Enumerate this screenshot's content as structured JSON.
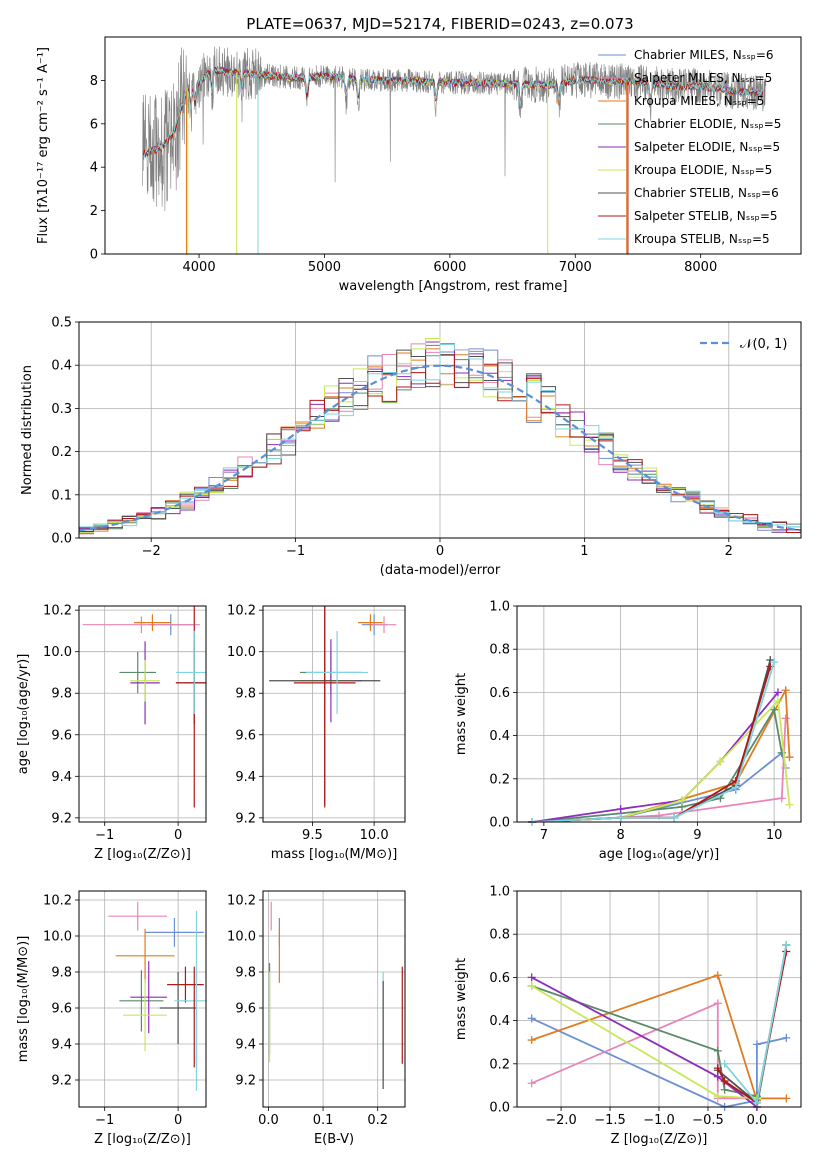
{
  "figure_title": "PLATE=0637, MJD=52174, FIBERID=0243, z=0.073",
  "colors": {
    "cm": "#6a8fd6",
    "sm": "#e885b8",
    "km": "#e07b20",
    "ce": "#5a8a6a",
    "se": "#8e2dbb",
    "ke": "#c8e85a",
    "cs": "#505050",
    "ss": "#b01818",
    "ks": "#7fd4e0",
    "obs": "#808080",
    "gauss": "#5b8fd6"
  },
  "chart_data": [
    {
      "type": "line",
      "title": "PLATE=0637, MJD=52174, FIBERID=0243, z=0.073",
      "xlabel": "wavelength [Angstrom, rest frame]",
      "ylabel": "Flux [fλ10⁻¹⁷ erg cm⁻² s⁻¹ A⁻¹]",
      "xlim": [
        3250,
        8800
      ],
      "ylim": [
        0,
        10
      ],
      "xticks": [
        "4000",
        "5000",
        "6000",
        "7000",
        "8000"
      ],
      "yticks": [
        "0",
        "2",
        "4",
        "6",
        "8"
      ],
      "legend_position": "upper-right",
      "legend": [
        "Chabrier MILES, Nₛₛₚ=6",
        "Salpeter MILES, Nₛₛₚ=5",
        "Kroupa MILES, Nₛₛₚ=5",
        "Chabrier ELODIE, Nₛₛₚ=5",
        "Salpeter ELODIE, Nₛₛₚ=5",
        "Kroupa ELODIE, Nₛₛₚ=5",
        "Chabrier STELIB, Nₛₛₚ=6",
        "Salpeter STELIB, Nₛₛₚ=5",
        "Kroupa STELIB, Nₛₛₚ=5"
      ],
      "continuum": {
        "x": [
          3550,
          3700,
          3800,
          3900,
          4000,
          4100,
          4200,
          4400,
          4600,
          4800,
          5000,
          5200,
          5400,
          5600,
          5800,
          6000,
          6200,
          6400,
          6600,
          6800,
          7000,
          7200,
          7400,
          7600,
          7800,
          8000,
          8200,
          8400,
          8500
        ],
        "y": [
          4.6,
          4.9,
          5.6,
          7.5,
          7.9,
          8.5,
          8.4,
          8.3,
          8.2,
          8.1,
          8.2,
          8.1,
          8.0,
          8.0,
          7.95,
          7.9,
          7.9,
          7.85,
          7.8,
          7.8,
          8.0,
          8.0,
          7.95,
          7.9,
          7.7,
          7.75,
          7.55,
          7.45,
          7.4
        ]
      }
    },
    {
      "type": "step",
      "xlabel": "(data-model)/error",
      "ylabel": "Normed distribution",
      "xlim": [
        -2.5,
        2.5
      ],
      "ylim": [
        0,
        0.5
      ],
      "xticks": [
        "−2",
        "−1",
        "0",
        "1",
        "2"
      ],
      "yticks": [
        "0.0",
        "0.1",
        "0.2",
        "0.3",
        "0.4",
        "0.5"
      ],
      "legend": [
        "𝒩(0, 1)"
      ],
      "legend_position": "upper-right",
      "gaussian": {
        "mean": 0,
        "sigma": 1
      }
    },
    {
      "type": "scatter",
      "xlabel": "Z [log₁₀(Z/Z⊙)]",
      "ylabel": "age  [log₁₀(age/yr)]",
      "xlim": [
        -1.35,
        0.38
      ],
      "ylim": [
        9.18,
        10.22
      ],
      "xticks": [
        "−1",
        "0"
      ],
      "yticks": [
        "9.2",
        "9.4",
        "9.6",
        "9.8",
        "10.0",
        "10.2"
      ],
      "points": [
        {
          "c": "cm",
          "x": -0.1,
          "xe": 0.3,
          "y": 10.13,
          "ye": 0.05
        },
        {
          "c": "sm",
          "x": -0.5,
          "xe": 0.8,
          "y": 10.13,
          "ye": 0.04
        },
        {
          "c": "km",
          "x": -0.35,
          "xe": 0.25,
          "y": 10.14,
          "ye": 0.04
        },
        {
          "c": "ce",
          "x": -0.55,
          "xe": 0.25,
          "y": 9.9,
          "ye": 0.1
        },
        {
          "c": "se",
          "x": -0.45,
          "xe": 0.2,
          "y": 9.85,
          "ye": 0.2
        },
        {
          "c": "ke",
          "x": -0.45,
          "xe": 0.2,
          "y": 9.86,
          "ye": 0.1
        },
        {
          "c": "cs",
          "x": 0.22,
          "xe": 0.25,
          "y": 9.85,
          "ye": 0.2
        },
        {
          "c": "ss",
          "x": 0.22,
          "xe": 0.25,
          "y": 9.85,
          "ye": 0.6
        },
        {
          "c": "ks",
          "x": 0.22,
          "xe": 0.25,
          "y": 9.9,
          "ye": 0.2
        }
      ]
    },
    {
      "type": "scatter",
      "xlabel": "mass [log₁₀(M/M⊙)]",
      "ylabel": "",
      "xlim": [
        9.1,
        10.25
      ],
      "ylim": [
        9.18,
        10.22
      ],
      "xticks": [
        "9.5",
        "10.0"
      ],
      "yticks": [
        "9.2",
        "9.4",
        "9.6",
        "9.8",
        "10.0",
        "10.2"
      ],
      "points": [
        {
          "c": "cm",
          "x": 10.0,
          "xe": 0.1,
          "y": 10.13,
          "ye": 0.05
        },
        {
          "c": "sm",
          "x": 10.08,
          "xe": 0.1,
          "y": 10.13,
          "ye": 0.04
        },
        {
          "c": "km",
          "x": 9.97,
          "xe": 0.1,
          "y": 10.14,
          "ye": 0.04
        },
        {
          "c": "ce",
          "x": 9.65,
          "xe": 0.25,
          "y": 9.9,
          "ye": 0.1
        },
        {
          "c": "se",
          "x": 9.65,
          "xe": 0.25,
          "y": 9.86,
          "ye": 0.2
        },
        {
          "c": "ke",
          "x": 9.6,
          "xe": 0.25,
          "y": 9.86,
          "ye": 0.1
        },
        {
          "c": "cs",
          "x": 9.6,
          "xe": 0.45,
          "y": 9.86,
          "ye": 0.6
        },
        {
          "c": "ss",
          "x": 9.6,
          "xe": 0.25,
          "y": 9.85,
          "ye": 0.6
        },
        {
          "c": "ks",
          "x": 9.7,
          "xe": 0.25,
          "y": 9.9,
          "ye": 0.2
        }
      ]
    },
    {
      "type": "line",
      "xlabel": "age  [log₁₀(age/yr)]",
      "ylabel": "mass weight",
      "xlim": [
        6.65,
        10.35
      ],
      "ylim": [
        0,
        1.0
      ],
      "xticks": [
        "7",
        "8",
        "9",
        "10"
      ],
      "yticks": [
        "0.0",
        "0.2",
        "0.4",
        "0.6",
        "0.8",
        "1.0"
      ],
      "series": [
        {
          "c": "cm",
          "x": [
            6.85,
            8.0,
            9.5,
            10.1,
            10.15
          ],
          "y": [
            0.0,
            0.02,
            0.15,
            0.32,
            0.25
          ]
        },
        {
          "c": "sm",
          "x": [
            6.85,
            8.5,
            10.1,
            10.15
          ],
          "y": [
            0.0,
            0.03,
            0.11,
            0.48
          ]
        },
        {
          "c": "km",
          "x": [
            6.85,
            8.0,
            9.5,
            10.15,
            10.2
          ],
          "y": [
            0.0,
            0.02,
            0.18,
            0.61,
            0.3
          ]
        },
        {
          "c": "ce",
          "x": [
            6.85,
            8.0,
            8.8,
            9.3,
            10.0,
            10.1
          ],
          "y": [
            0.0,
            0.04,
            0.07,
            0.11,
            0.52,
            0.32
          ]
        },
        {
          "c": "se",
          "x": [
            6.85,
            8.0,
            8.8,
            9.3,
            10.05
          ],
          "y": [
            0.0,
            0.06,
            0.1,
            0.28,
            0.6
          ]
        },
        {
          "c": "ke",
          "x": [
            6.85,
            8.0,
            8.8,
            9.3,
            10.05,
            10.2
          ],
          "y": [
            0.0,
            0.02,
            0.1,
            0.28,
            0.56,
            0.08
          ]
        },
        {
          "c": "cs",
          "x": [
            6.85,
            8.0,
            8.7,
            9.5,
            9.95
          ],
          "y": [
            0.0,
            0.02,
            0.02,
            0.17,
            0.75
          ]
        },
        {
          "c": "ss",
          "x": [
            6.85,
            8.0,
            8.7,
            9.5,
            9.95
          ],
          "y": [
            0.0,
            0.02,
            0.02,
            0.19,
            0.72
          ]
        },
        {
          "c": "ks",
          "x": [
            6.85,
            8.0,
            8.7,
            9.5,
            10.0
          ],
          "y": [
            0.0,
            0.02,
            0.02,
            0.16,
            0.74
          ]
        }
      ]
    },
    {
      "type": "scatter",
      "xlabel": "Z [log₁₀(Z/Z⊙)]",
      "ylabel": "mass [log₁₀(M/M⊙)]",
      "xlim": [
        -1.35,
        0.38
      ],
      "ylim": [
        9.05,
        10.25
      ],
      "xticks": [
        "−1",
        "0"
      ],
      "yticks": [
        "9.2",
        "9.4",
        "9.6",
        "9.8",
        "10.0",
        "10.2"
      ],
      "points": [
        {
          "c": "sm",
          "x": -0.55,
          "xe": 0.4,
          "y": 10.11,
          "ye": 0.08
        },
        {
          "c": "cm",
          "x": -0.05,
          "xe": 0.4,
          "y": 10.02,
          "ye": 0.08
        },
        {
          "c": "km",
          "x": -0.45,
          "xe": 0.4,
          "y": 9.89,
          "ye": 0.15
        },
        {
          "c": "ce",
          "x": -0.5,
          "xe": 0.3,
          "y": 9.64,
          "ye": 0.17
        },
        {
          "c": "se",
          "x": -0.4,
          "xe": 0.25,
          "y": 9.66,
          "ye": 0.2
        },
        {
          "c": "ke",
          "x": -0.45,
          "xe": 0.3,
          "y": 9.56,
          "ye": 0.2
        },
        {
          "c": "ss",
          "x": 0.1,
          "xe": 0.25,
          "y": 9.73,
          "ye": 0.1
        },
        {
          "c": "cs",
          "x": 0.0,
          "xe": 0.25,
          "y": 9.6,
          "ye": 0.2
        },
        {
          "c": "ks",
          "x": 0.25,
          "xe": 0.3,
          "y": 9.64,
          "ye": 0.5
        },
        {
          "c": "ss",
          "x": 0.22,
          "xe": 0.0,
          "y": 9.55,
          "ye": 0.28
        }
      ]
    },
    {
      "type": "scatter",
      "xlabel": "E(B-V)",
      "ylabel": "",
      "xlim": [
        -0.01,
        0.25
      ],
      "ylim": [
        9.05,
        10.25
      ],
      "xticks": [
        "0.0",
        "0.1",
        "0.2"
      ],
      "yticks": [
        "9.2",
        "9.4",
        "9.6",
        "9.8",
        "10.0",
        "10.2"
      ],
      "points": [
        {
          "c": "sm",
          "x": 0.005,
          "xe": 0.0,
          "y": 10.11,
          "ye": 0.08
        },
        {
          "c": "cm",
          "x": 0.02,
          "xe": 0.0,
          "y": 10.02,
          "ye": 0.08
        },
        {
          "c": "km",
          "x": 0.02,
          "xe": 0.0,
          "y": 9.89,
          "ye": 0.15
        },
        {
          "c": "ce",
          "x": 0.002,
          "xe": 0.0,
          "y": 9.6,
          "ye": 0.25
        },
        {
          "c": "ke",
          "x": 0.002,
          "xe": 0.0,
          "y": 9.55,
          "ye": 0.25
        },
        {
          "c": "ks",
          "x": 0.21,
          "xe": 0.0,
          "y": 9.5,
          "ye": 0.3
        },
        {
          "c": "cs",
          "x": 0.21,
          "xe": 0.0,
          "y": 9.45,
          "ye": 0.3
        },
        {
          "c": "ss",
          "x": 0.245,
          "xe": 0.0,
          "y": 9.56,
          "ye": 0.27
        }
      ]
    },
    {
      "type": "line",
      "xlabel": "Z [log₁₀(Z/Z⊙)]",
      "ylabel": "mass weight",
      "xlim": [
        -2.45,
        0.45
      ],
      "ylim": [
        0,
        1.0
      ],
      "xticks": [
        "−2.0",
        "−1.5",
        "−1.0",
        "−0.5",
        "0.0"
      ],
      "yticks": [
        "0.0",
        "0.2",
        "0.4",
        "0.6",
        "0.8",
        "1.0"
      ],
      "series": [
        {
          "c": "cm",
          "x": [
            -2.3,
            -0.33,
            0.0,
            0.0,
            0.3
          ],
          "y": [
            0.41,
            0.0,
            0.03,
            0.29,
            0.32
          ]
        },
        {
          "c": "sm",
          "x": [
            -2.3,
            -0.4,
            -0.4,
            0.0
          ],
          "y": [
            0.11,
            0.48,
            0.04,
            0.04
          ]
        },
        {
          "c": "km",
          "x": [
            -2.3,
            -0.4,
            0.0,
            0.0,
            0.3
          ],
          "y": [
            0.31,
            0.61,
            0.03,
            0.04,
            0.04
          ]
        },
        {
          "c": "ce",
          "x": [
            -2.3,
            -0.4,
            -0.33,
            0.0,
            0.0,
            0.3
          ],
          "y": [
            0.56,
            0.26,
            0.08,
            0.05,
            0.0,
            0.75
          ]
        },
        {
          "c": "se",
          "x": [
            -2.3,
            -0.4,
            0.0,
            0.0
          ],
          "y": [
            0.6,
            0.14,
            0.0,
            0.0
          ]
        },
        {
          "c": "ke",
          "x": [
            -2.3,
            -0.4,
            0.0
          ],
          "y": [
            0.56,
            0.05,
            0.04
          ]
        },
        {
          "c": "cs",
          "x": [
            -0.4,
            0.0,
            0.3
          ],
          "y": [
            0.17,
            0.02,
            0.75
          ]
        },
        {
          "c": "ss",
          "x": [
            -0.4,
            -0.33,
            0.0,
            0.3
          ],
          "y": [
            0.18,
            0.12,
            0.02,
            0.72
          ]
        },
        {
          "c": "ks",
          "x": [
            -0.33,
            0.0,
            0.3
          ],
          "y": [
            0.2,
            0.02,
            0.75
          ]
        }
      ]
    }
  ]
}
